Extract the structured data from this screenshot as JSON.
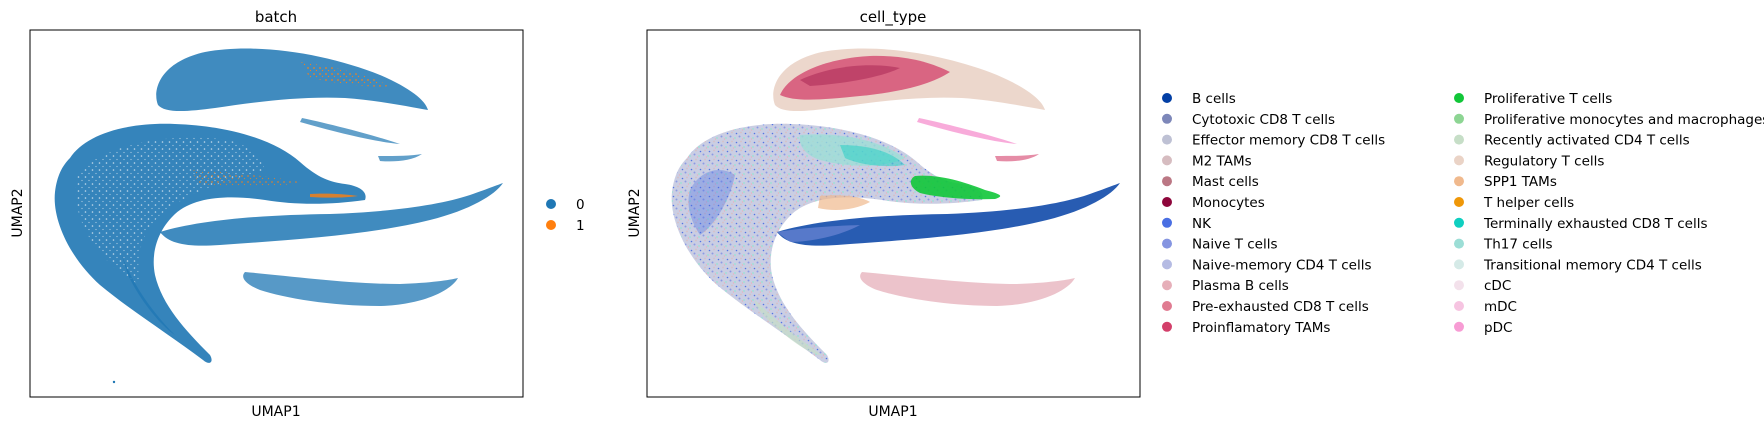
{
  "chart_data": [
    {
      "type": "scatter",
      "title": "batch",
      "xlabel": "UMAP1",
      "ylabel": "UMAP2",
      "grid": false,
      "legend_placement": "right",
      "legend": [
        {
          "label": "0",
          "color": "#1f77b4"
        },
        {
          "label": "1",
          "color": "#ff7f0e"
        }
      ]
    },
    {
      "type": "scatter",
      "title": "cell_type",
      "xlabel": "UMAP1",
      "ylabel": "UMAP2",
      "grid": false,
      "legend_placement": "right",
      "legend": [
        {
          "label": "B cells",
          "color": "#023fa5"
        },
        {
          "label": "Cytotoxic CD8 T cells",
          "color": "#7d87b9"
        },
        {
          "label": "Effector memory CD8 T cells",
          "color": "#bec1d4"
        },
        {
          "label": "M2 TAMs",
          "color": "#d6bcc0"
        },
        {
          "label": "Mast cells",
          "color": "#bb7784"
        },
        {
          "label": "Monocytes",
          "color": "#8e063b"
        },
        {
          "label": "NK",
          "color": "#4a6fe3"
        },
        {
          "label": "Naive T cells",
          "color": "#8595e1"
        },
        {
          "label": "Naive-memory CD4 T cells",
          "color": "#b5bbe3"
        },
        {
          "label": "Plasma B cells",
          "color": "#e6afb9"
        },
        {
          "label": "Pre-exhausted CD8 T cells",
          "color": "#e07b91"
        },
        {
          "label": "Proinflamatory TAMs",
          "color": "#d33f6a"
        },
        {
          "label": "Proliferative T cells",
          "color": "#11c638"
        },
        {
          "label": "Proliferative monocytes and macrophages",
          "color": "#8dd593"
        },
        {
          "label": "Recently activated CD4 T cells",
          "color": "#c6dec7"
        },
        {
          "label": "Regulatory T cells",
          "color": "#ead3c6"
        },
        {
          "label": "SPP1 TAMs",
          "color": "#f0b98d"
        },
        {
          "label": "T helper cells",
          "color": "#ef9708"
        },
        {
          "label": "Terminally exhausted CD8 T cells",
          "color": "#0fcfc0"
        },
        {
          "label": "Th17 cells",
          "color": "#9cded6"
        },
        {
          "label": "Transitional memory CD4 T cells",
          "color": "#d5eae7"
        },
        {
          "label": "cDC",
          "color": "#f3e1eb"
        },
        {
          "label": "mDC",
          "color": "#f6c4e1"
        },
        {
          "label": "pDC",
          "color": "#f79cd4"
        }
      ]
    }
  ]
}
